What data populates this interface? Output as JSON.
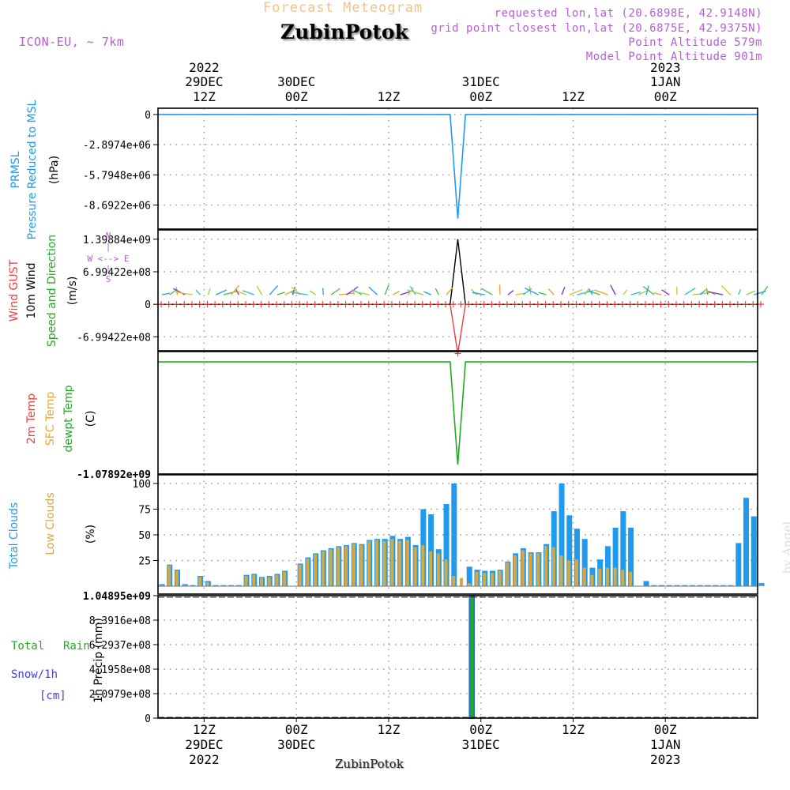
{
  "header": {
    "subtitle": "Forecast Meteogram",
    "title": "ZubinPotok",
    "model": "ICON-EU, ~ 7km",
    "requested": "requested lon,lat (20.6898E, 42.9148N)",
    "closest": "grid point closest lon,lat (20.6875E, 42.9375N)",
    "point_alt": "Point Altitude 579m",
    "model_alt": "Model Point Altitude 901m"
  },
  "time_axis": {
    "top": [
      {
        "l1": "2022",
        "l2": "29DEC",
        "l3": "12Z"
      },
      {
        "l1": "",
        "l2": "30DEC",
        "l3": "00Z"
      },
      {
        "l1": "",
        "l2": "",
        "l3": "12Z"
      },
      {
        "l1": "",
        "l2": "31DEC",
        "l3": "00Z"
      },
      {
        "l1": "",
        "l2": "",
        "l3": "12Z"
      },
      {
        "l1": "2023",
        "l2": "1JAN",
        "l3": "00Z"
      }
    ],
    "bottom": [
      {
        "l1": "12Z",
        "l2": "29DEC",
        "l3": "2022"
      },
      {
        "l1": "00Z",
        "l2": "30DEC",
        "l3": ""
      },
      {
        "l1": "12Z",
        "l2": "",
        "l3": ""
      },
      {
        "l1": "00Z",
        "l2": "31DEC",
        "l3": ""
      },
      {
        "l1": "12Z",
        "l2": "",
        "l3": ""
      },
      {
        "l1": "00Z",
        "l2": "1JAN",
        "l3": "2023"
      }
    ]
  },
  "panels": {
    "pressure": {
      "label_a": "PRMSL",
      "label_b": "Pressure Reduced to MSL",
      "unit": "(hPa)",
      "ticks": [
        "0",
        "-2.8974e+06",
        "-5.7948e+06",
        "-8.6922e+06"
      ]
    },
    "wind": {
      "label_gust": "Wind GUST",
      "label_10m": "10m Wind",
      "label_speed": "Speed and Direction",
      "unit": "(m/s)",
      "compass_n": "N",
      "compass_we": "W <--> E",
      "compass_s": "S",
      "ticks": [
        "1.39884e+09",
        "6.99422e+08",
        "0",
        "-6.99422e+08"
      ]
    },
    "temp": {
      "label_2m": "2m Temp",
      "label_sfc": "SFC Temp",
      "label_dewpt": "dewpt Temp",
      "unit": "(C)",
      "ticks": [
        "-1.07892e+09"
      ]
    },
    "clouds": {
      "label_total": "Total Clouds",
      "label_low": "Low Clouds",
      "unit": "(%)",
      "ticks": [
        "100",
        "75",
        "50",
        "25"
      ]
    },
    "precip": {
      "label_total": "Total",
      "label_rain": "Rain",
      "label_snow": "Snow/1h",
      "label_cm": "[cm]",
      "unit": "1h Precip (mm)",
      "ticks": [
        "1.04895e+09",
        "8.3916e+08",
        "6.2937e+08",
        "4.1958e+08",
        "2.0979e+08",
        "0"
      ]
    }
  },
  "footer": {
    "city": "ZubinPotok",
    "signature": "by Angel"
  },
  "colors": {
    "prmsl": "#1e9bf0",
    "gust": "#f04040",
    "wind10": "#000000",
    "speed": "#22aa22",
    "temp2m": "#f04040",
    "sfc": "#e8a830",
    "dewpt": "#22aa22",
    "total_clouds": "#1e9bf0",
    "low_clouds": "#d8a840",
    "rain": "#22aa22",
    "snow": "#4040e0",
    "header": "#b55ed6"
  },
  "chart_data": [
    {
      "type": "line",
      "title": "PRMSL Pressure Reduced to MSL",
      "ylabel": "(hPa)",
      "ylim": [
        -11000000,
        600000
      ],
      "x_hours": [
        0,
        38,
        39,
        40,
        78
      ],
      "series": [
        {
          "name": "PRMSL",
          "values": [
            0,
            0,
            -9990000,
            0,
            0
          ]
        }
      ]
    },
    {
      "type": "line",
      "title": "Wind GUST / 10m Wind Speed and Direction",
      "ylabel": "(m/s)",
      "ylim": [
        -1000000000,
        1600000000
      ],
      "x_hours": [
        0,
        38,
        39,
        40,
        78
      ],
      "series": [
        {
          "name": "Wind GUST",
          "values": [
            0,
            0,
            -1060000000,
            0,
            0
          ]
        },
        {
          "name": "10m Wind",
          "values": [
            0,
            0,
            1398840000,
            0,
            0
          ]
        }
      ]
    },
    {
      "type": "line",
      "title": "2m Temp / SFC Temp / dewpt Temp",
      "ylabel": "(C)",
      "ylim": [
        -1078920000,
        100000000
      ],
      "x_hours": [
        0,
        38,
        39,
        40,
        78
      ],
      "series": [
        {
          "name": "dewpt Temp",
          "values": [
            0,
            0,
            -990000000,
            0,
            0
          ]
        }
      ]
    },
    {
      "type": "bar",
      "title": "Total Clouds / Low Clouds",
      "ylabel": "(%)",
      "ylim": [
        0,
        100
      ],
      "x_hours": [
        0,
        1,
        2,
        3,
        4,
        5,
        6,
        7,
        8,
        9,
        10,
        11,
        12,
        13,
        14,
        15,
        16,
        17,
        18,
        19,
        20,
        21,
        22,
        23,
        24,
        25,
        26,
        27,
        28,
        29,
        30,
        31,
        32,
        33,
        34,
        35,
        36,
        37,
        38,
        39,
        40,
        41,
        42,
        43,
        44,
        45,
        46,
        47,
        48,
        49,
        50,
        51,
        52,
        53,
        54,
        55,
        56,
        57,
        58,
        59,
        60,
        61,
        62,
        63,
        64,
        65,
        66,
        67,
        68,
        69,
        70,
        71,
        72,
        73,
        74,
        75,
        76,
        77,
        78
      ],
      "series": [
        {
          "name": "Total Clouds",
          "values": [
            2,
            21,
            16,
            2,
            1,
            10,
            5,
            1,
            1,
            1,
            1,
            11,
            12,
            9,
            10,
            12,
            15,
            0,
            22,
            28,
            32,
            35,
            37,
            39,
            40,
            42,
            41,
            45,
            46,
            46,
            49,
            46,
            48,
            40,
            75,
            70,
            36,
            80,
            100,
            0,
            19,
            16,
            15,
            15,
            16,
            24,
            32,
            37,
            33,
            33,
            41,
            73,
            100,
            69,
            56,
            46,
            18,
            26,
            39,
            57,
            73,
            57,
            0,
            5,
            1,
            1,
            1,
            1,
            1,
            1,
            1,
            1,
            1,
            1,
            1,
            42,
            86,
            68,
            3
          ]
        },
        {
          "name": "Low Clouds",
          "values": [
            1,
            20,
            15,
            1,
            0,
            9,
            4,
            0,
            0,
            0,
            0,
            10,
            11,
            8,
            9,
            11,
            14,
            0,
            21,
            27,
            31,
            34,
            36,
            38,
            39,
            41,
            40,
            44,
            45,
            44,
            46,
            44,
            45,
            38,
            40,
            34,
            32,
            26,
            10,
            8,
            3,
            14,
            13,
            13,
            15,
            23,
            30,
            35,
            32,
            32,
            39,
            38,
            30,
            25,
            26,
            18,
            11,
            17,
            18,
            18,
            16,
            14,
            0,
            0,
            0,
            0,
            0,
            0,
            0,
            0,
            0,
            0,
            0,
            0,
            0,
            0,
            0,
            0,
            1
          ]
        }
      ]
    },
    {
      "type": "bar",
      "title": "Total / Rain / Snow/1h",
      "ylabel": "1h Precip (mm)",
      "ylim": [
        0,
        1048950000
      ],
      "x_hours": [
        0,
        40,
        78
      ],
      "series": [
        {
          "name": "Total",
          "values": [
            0,
            1048950000,
            0
          ]
        }
      ]
    }
  ]
}
